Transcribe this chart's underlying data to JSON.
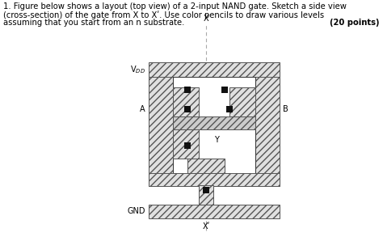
{
  "title_line1": "1. Figure below shows a layout (top view) of a 2-input NAND gate. Sketch a side view",
  "title_line2": "(cross-section) of the gate from X to Xʹ. Use color pencils to draw various levels",
  "title_line3": "assuming that you start from an n substrate.",
  "points_text": "(20 points)",
  "bg_color": "#ffffff",
  "hatch_fc": "#e0e0e0",
  "hatch_ec": "#555555",
  "contact_color": "#111111",
  "line_color": "#000000",
  "poly_color": "#bbbbbb",
  "vdd_label": "V$_{DD}$",
  "gnd_label": "GND",
  "A_label": "A",
  "B_label": "B",
  "X_top_label": "X",
  "X_bot_label": "Xʹ",
  "Y_label": "Y",
  "font_size_title": 7.2,
  "font_size_label": 7.0
}
